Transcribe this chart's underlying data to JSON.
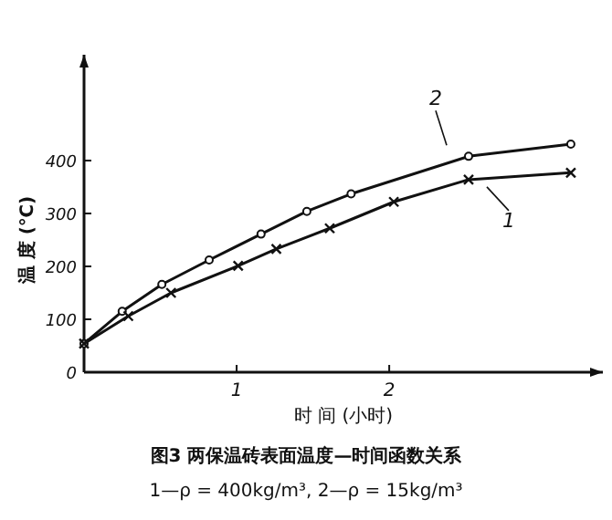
{
  "chart_data": {
    "type": "line",
    "xlabel": "时 间 (小时)",
    "ylabel": "温 度 (℃)",
    "title": "图3  两保温砖表面温度—时间函数关系",
    "subtitle": "1—ρ = 400kg/m³, 2—ρ = 15kg/m³",
    "xlim": [
      0,
      3.4
    ],
    "ylim": [
      0,
      600
    ],
    "xticks": [
      1,
      2
    ],
    "yticks": [
      0,
      100,
      200,
      300,
      400
    ],
    "grid": false,
    "line_style": "solid",
    "series": [
      {
        "name": "2",
        "color": "#111111",
        "marker": "circle",
        "x": [
          0,
          0.25,
          0.51,
          0.82,
          1.16,
          1.46,
          1.75,
          2.52,
          3.19
        ],
        "values": [
          54,
          115,
          166,
          212,
          261,
          304,
          337,
          408,
          431
        ]
      },
      {
        "name": "1",
        "color": "#111111",
        "marker": "cross",
        "x": [
          0,
          0.29,
          0.57,
          1.01,
          1.26,
          1.61,
          2.03,
          2.52,
          3.19
        ],
        "values": [
          54,
          106,
          150,
          201,
          233,
          272,
          322,
          364,
          377
        ]
      }
    ]
  }
}
